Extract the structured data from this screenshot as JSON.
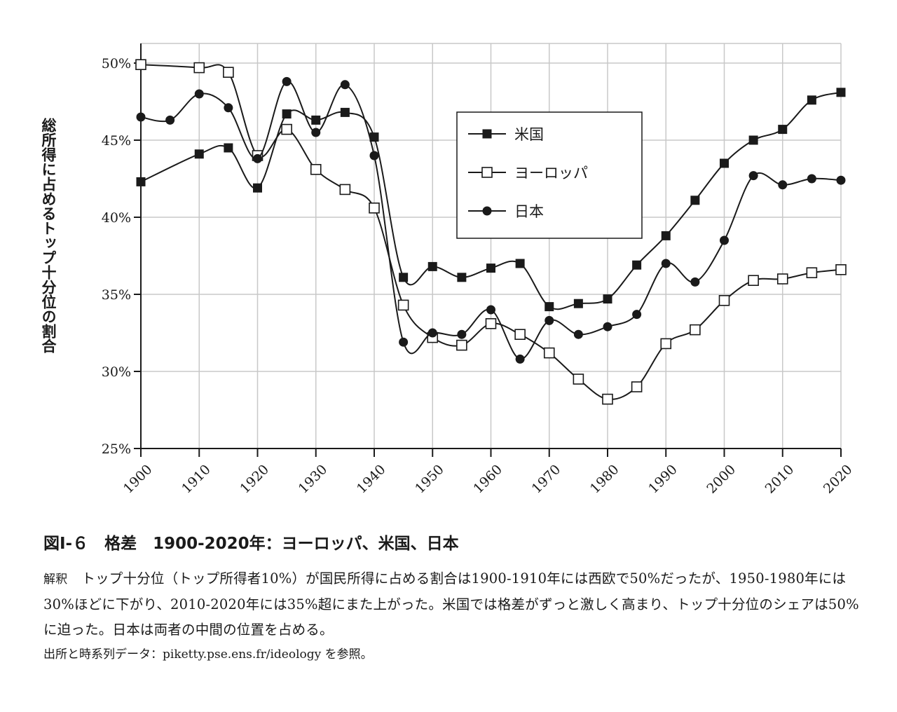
{
  "chart_data": {
    "type": "line",
    "ylabel": "総所得に占めるトップ十分位の割合",
    "ylim": [
      25,
      50
    ],
    "y_ticks": [
      "25%",
      "30%",
      "35%",
      "40%",
      "45%",
      "50%"
    ],
    "y_tick_values": [
      25,
      30,
      35,
      40,
      45,
      50
    ],
    "xlim": [
      1900,
      2020
    ],
    "x_ticks": [
      "1900",
      "1910",
      "1920",
      "1930",
      "1940",
      "1950",
      "1960",
      "1970",
      "1980",
      "1990",
      "2000",
      "2010",
      "2020"
    ],
    "x_tick_values": [
      1900,
      1910,
      1920,
      1930,
      1940,
      1950,
      1960,
      1970,
      1980,
      1990,
      2000,
      2010,
      2020
    ],
    "grid": true,
    "legend_position": "upper-center",
    "series": [
      {
        "name": "米国",
        "marker": "filled-square",
        "x": [
          1900,
          1910,
          1915,
          1920,
          1925,
          1930,
          1935,
          1940,
          1945,
          1950,
          1955,
          1960,
          1965,
          1970,
          1975,
          1980,
          1985,
          1990,
          1995,
          2000,
          2005,
          2010,
          2015,
          2020
        ],
        "values": [
          42.3,
          44.1,
          44.5,
          41.9,
          46.7,
          46.3,
          46.8,
          45.2,
          36.1,
          36.8,
          36.1,
          36.7,
          37.0,
          34.2,
          34.4,
          34.7,
          36.9,
          38.8,
          41.1,
          43.5,
          45.0,
          45.7,
          47.6,
          48.1
        ]
      },
      {
        "name": "ヨーロッパ",
        "marker": "hollow-square",
        "x": [
          1900,
          1910,
          1915,
          1920,
          1925,
          1930,
          1935,
          1940,
          1945,
          1950,
          1955,
          1960,
          1965,
          1970,
          1975,
          1980,
          1985,
          1990,
          1995,
          2000,
          2005,
          2010,
          2015,
          2020
        ],
        "values": [
          49.9,
          49.7,
          49.4,
          44.0,
          45.7,
          43.1,
          41.8,
          40.6,
          34.3,
          32.2,
          31.7,
          33.1,
          32.4,
          31.2,
          29.5,
          28.2,
          29.0,
          31.8,
          32.7,
          34.6,
          35.9,
          36.0,
          36.4,
          36.6
        ]
      },
      {
        "name": "日本",
        "marker": "filled-circle",
        "x": [
          1900,
          1905,
          1910,
          1915,
          1920,
          1925,
          1930,
          1935,
          1940,
          1945,
          1950,
          1955,
          1960,
          1965,
          1970,
          1975,
          1980,
          1985,
          1990,
          1995,
          2000,
          2005,
          2010,
          2015,
          2020
        ],
        "values": [
          46.5,
          46.3,
          48.0,
          47.1,
          43.8,
          48.8,
          45.5,
          48.6,
          44.0,
          31.9,
          32.5,
          32.4,
          34.0,
          30.8,
          33.3,
          32.4,
          32.9,
          33.7,
          37.0,
          35.8,
          38.5,
          42.7,
          42.1,
          42.5,
          42.4
        ]
      }
    ]
  },
  "caption": {
    "title": "図Ⅰ-６　格差　1900-2020年：ヨーロッパ、米国、日本",
    "interpretation_label": "解釈",
    "interpretation": "トップ十分位（トップ所得者10%）が国民所得に占める割合は1900-1910年には西欧で50%だったが、1950-1980年には30%ほどに下がり、2010-2020年には35%超にまた上がった。米国では格差がずっと激しく高まり、トップ十分位のシェアは50%に迫った。日本は両者の中間の位置を占める。",
    "source": "出所と時系列データ：piketty.pse.ens.fr/ideology を参照。"
  },
  "colors": {
    "line": "#1a1a1a",
    "grid": "#c8c8c8",
    "background": "#ffffff"
  }
}
